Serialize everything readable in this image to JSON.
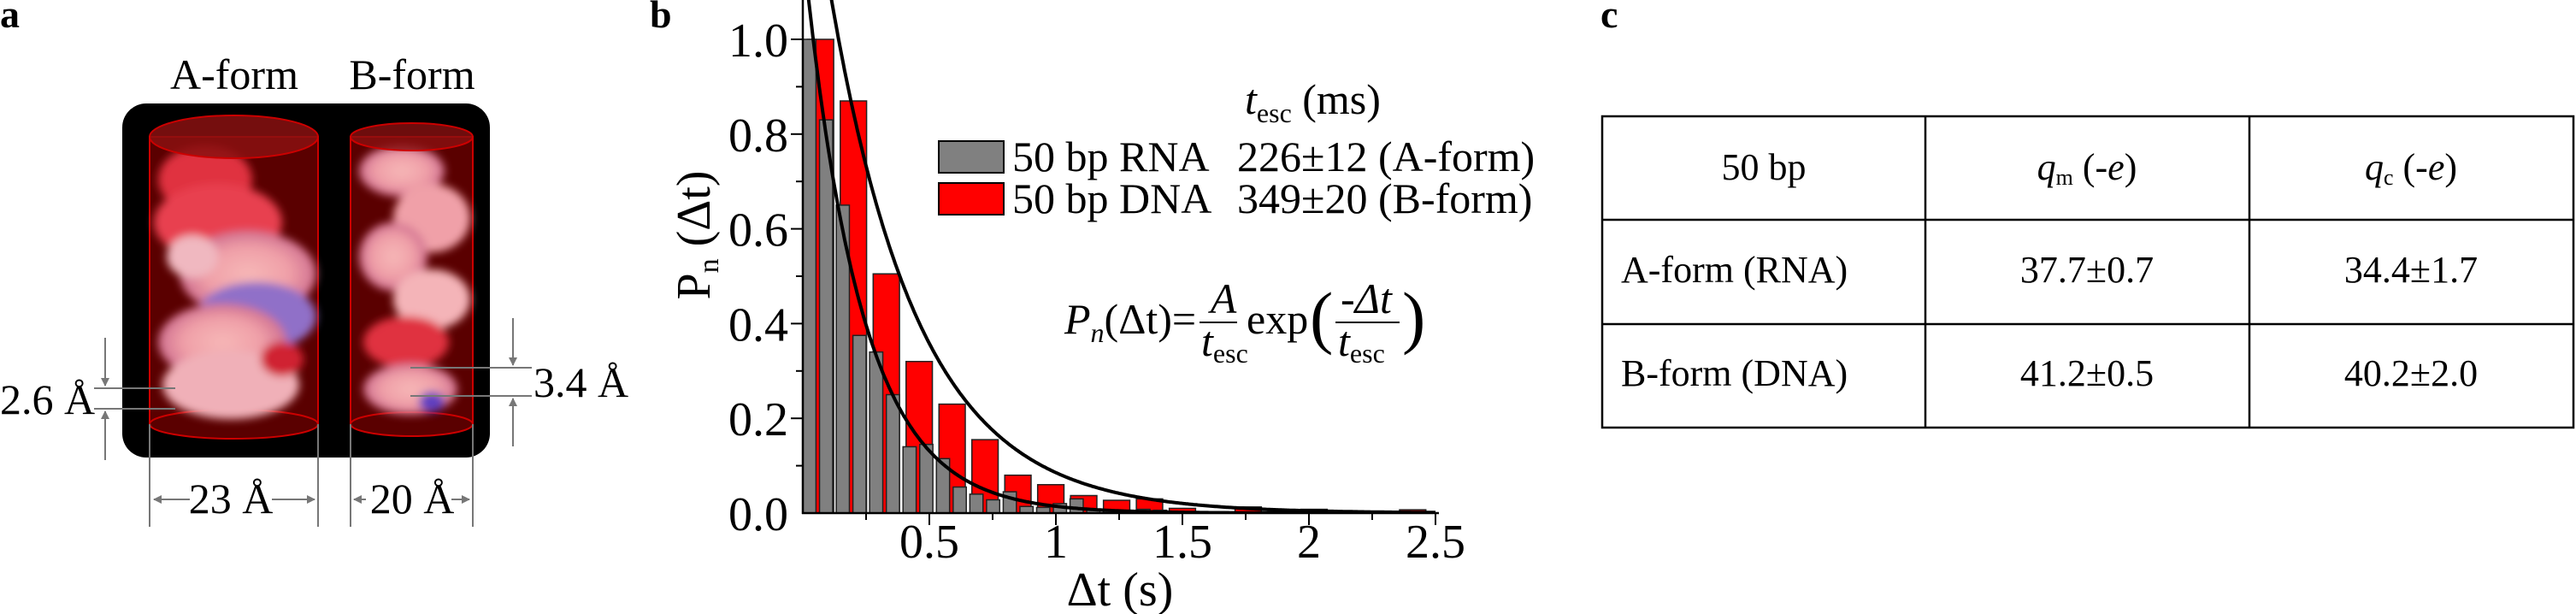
{
  "panels": {
    "a": "a",
    "b": "b",
    "c": "c"
  },
  "panel_a": {
    "labels": {
      "a_form": "A-form",
      "b_form": "B-form"
    },
    "dimensions": {
      "a_width": "23 Å",
      "b_width": "20 Å",
      "a_rise": "2.6 Å",
      "b_rise": "3.4 Å"
    }
  },
  "chart_data": {
    "type": "bar",
    "xlabel": "Δt (s)",
    "ylabel_main": "P",
    "ylabel_sub": "n",
    "ylabel_rest": " (Δt)",
    "xlim": [
      0,
      2.5
    ],
    "ylim": [
      0,
      1.08
    ],
    "x_ticks": [
      "0.5",
      "1",
      "1.5",
      "2",
      "2.5"
    ],
    "x_tick_values": [
      0.5,
      1,
      1.5,
      2,
      2.5
    ],
    "y_ticks": [
      "0.0",
      "0.2",
      "0.4",
      "0.6",
      "0.8",
      "1.0"
    ],
    "y_tick_values": [
      0,
      0.2,
      0.4,
      0.6,
      0.8,
      1.0
    ],
    "legend_header": {
      "t": "t",
      "sub": "esc",
      "unit": " (ms)"
    },
    "series": [
      {
        "name": "50 bp DNA",
        "value_label": "349±20 (B-form)",
        "color": "#ff0000",
        "bin_width": 0.104,
        "fit_tau": 0.349,
        "fit_amplitude": 1.5,
        "x": [
          0.07,
          0.2,
          0.33,
          0.46,
          0.59,
          0.72,
          0.85,
          0.98,
          1.11,
          1.24,
          1.37,
          1.5,
          1.63,
          1.76,
          1.89,
          2.02,
          2.15,
          2.28,
          2.41
        ],
        "values": [
          1.0,
          0.87,
          0.505,
          0.32,
          0.23,
          0.155,
          0.08,
          0.06,
          0.037,
          0.027,
          0.03,
          0.01,
          0.003,
          0.013,
          0.003,
          0.008,
          0.004,
          0.002,
          0.007
        ]
      },
      {
        "name": "50 bp RNA",
        "value_label": "226±12 (A-form)",
        "color": "#808080",
        "bin_width": 0.052,
        "fit_tau": 0.226,
        "fit_amplitude": 1.2,
        "x": [
          0.026,
          0.092,
          0.158,
          0.224,
          0.29,
          0.356,
          0.422,
          0.488,
          0.554,
          0.62,
          0.686,
          0.752,
          0.818,
          0.884,
          0.95,
          1.016,
          1.082,
          1.148,
          1.214,
          1.28,
          1.346,
          1.412
        ],
        "values": [
          1.0,
          0.83,
          0.65,
          0.375,
          0.34,
          0.25,
          0.14,
          0.145,
          0.115,
          0.055,
          0.04,
          0.028,
          0.045,
          0.014,
          0.012,
          0.02,
          0.03,
          0.008,
          0.005,
          0.004,
          0.008,
          0.006
        ]
      }
    ],
    "formula": {
      "lhs": "P",
      "lhs_sub": "n",
      "lhs_arg": "(Δt)=",
      "num": "A",
      "den": "t",
      "den_sub": "esc",
      "exp": "exp",
      "inner_num": "-Δt",
      "inner_den": "t",
      "inner_den_sub": "esc"
    }
  },
  "table": {
    "header": {
      "col0": "50 bp",
      "col1_q": "q",
      "col1_sub": "m",
      "col1_unit": " (-",
      "col1_e": "e",
      "col1_close": ")",
      "col2_q": "q",
      "col2_sub": "c",
      "col2_unit": " (-",
      "col2_e": "e",
      "col2_close": ")"
    },
    "rows": [
      {
        "label": "A-form (RNA)",
        "qm": "37.7±0.7",
        "qc": "34.4±1.7"
      },
      {
        "label": "B-form (DNA)",
        "qm": "41.2±0.5",
        "qc": "40.2±2.0"
      }
    ]
  }
}
